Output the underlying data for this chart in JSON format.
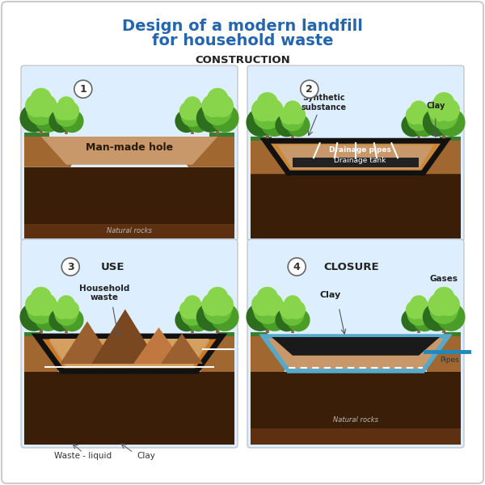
{
  "title_line1": "Design of a modern landfill",
  "title_line2": "for household waste",
  "title_color": "#2565AE",
  "title_fontsize": 14,
  "bg_color": "#ffffff",
  "border_color": "#cccccc",
  "section_label_color": "#333333",
  "construction_label": "CONSTRUCTION",
  "panel3_label": "USE",
  "panel4_label": "CLOSURE",
  "panel1_text": "Man-made hole",
  "panel1_subtext": "Natural rocks",
  "panel2_text1": "Synthetic\nsubstance",
  "panel2_text2": "Clay",
  "panel2_text3": "Drainage pipes",
  "panel2_text4": "Drainage tank",
  "panel3_text1": "Household\nwaste",
  "panel3_text2": "Waste - liquid",
  "panel3_text3": "Clay",
  "panel4_text1": "Clay",
  "panel4_text2": "Gases",
  "panel4_text3": "Natural rocks",
  "panel4_text4": "Pipes",
  "sky_color": "#ddeeff",
  "grass_dark": "#3a7d2c",
  "grass_light": "#5aad3a",
  "grass_bright": "#7dc94a",
  "tree_trunk_color": "#8B6444",
  "tree_dark": "#2d6e1e",
  "tree_mid": "#4a9e28",
  "tree_light": "#6abf38",
  "tree_highlight": "#88d44a",
  "soil_surface": "#c8986a",
  "soil_mid": "#a06830",
  "soil_dark": "#5c3010",
  "soil_darker": "#3a1e08",
  "clay_blue": "#55aacc",
  "pipe_blue": "#2288bb",
  "waste_brown": "#9B6030",
  "waste_mid": "#7a4820",
  "liner_dark": "#333333",
  "liner_color": "#444444",
  "drainage_color": "#7a8890",
  "rock_color": "#4a3520",
  "white": "#ffffff",
  "panel_edge": "#bbbbbb"
}
